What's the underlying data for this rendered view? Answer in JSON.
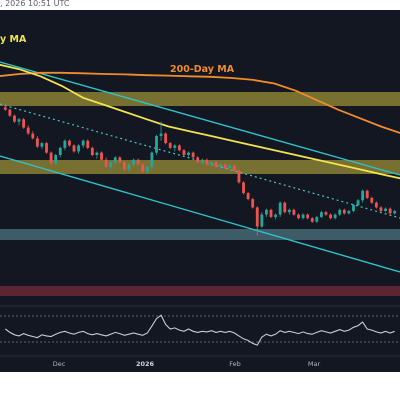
{
  "header": {
    "timestamp": ", 2026 10:51 UTC"
  },
  "colors": {
    "background": "#131722",
    "candle_up": "#26a69a",
    "candle_down": "#ef5350",
    "ma_50": "#f2e44e",
    "ma_200": "#f08c2c",
    "supply_zone": "#b5a83a",
    "demand_zone": "#5b8a96",
    "lower_zone": "#7a2d37",
    "channel": "#2fc1c8",
    "trend_dotted": "#49c2c4",
    "oscillator": "#c9cbd2"
  },
  "chart_data": [
    {
      "type": "candlestick",
      "annotations": [
        {
          "id": "ma50",
          "text": "y MA"
        },
        {
          "id": "ma200",
          "text": "200-Day MA"
        }
      ],
      "x_tick_labels": [
        "Dec",
        "2026",
        "Feb",
        "Mar"
      ],
      "series": [
        {
          "name": "price",
          "ohlc": [
            [
              100,
              101.5,
              98.5,
              99
            ],
            [
              99,
              99.5,
              96,
              96.5
            ],
            [
              96.5,
              97,
              93.5,
              94
            ],
            [
              94,
              95.5,
              92.5,
              95
            ],
            [
              95,
              95.5,
              91,
              91.5
            ],
            [
              91.5,
              92.5,
              88.5,
              89
            ],
            [
              89,
              90,
              86.5,
              87
            ],
            [
              87,
              88,
              83,
              83.5
            ],
            [
              83.5,
              85.5,
              82.5,
              85
            ],
            [
              85,
              85.5,
              80.5,
              81
            ],
            [
              81,
              81.5,
              76,
              76.5
            ],
            [
              76.5,
              80.5,
              76,
              80
            ],
            [
              80,
              83.5,
              79,
              83
            ],
            [
              83,
              86.5,
              82,
              86
            ],
            [
              86,
              86.5,
              83.5,
              84
            ],
            [
              84,
              84.5,
              81,
              81.5
            ],
            [
              81.5,
              84.5,
              80.5,
              84
            ],
            [
              84,
              86.5,
              83,
              86
            ],
            [
              86,
              86.5,
              82.5,
              83
            ],
            [
              83,
              83.5,
              79.5,
              80
            ],
            [
              80,
              81.5,
              78.5,
              81
            ],
            [
              81,
              81.5,
              77.5,
              78
            ],
            [
              78,
              79,
              74.5,
              75
            ],
            [
              75,
              77.5,
              74,
              77
            ],
            [
              77,
              79.5,
              76,
              79
            ],
            [
              79,
              79.5,
              76.5,
              77
            ],
            [
              77,
              77.5,
              73.5,
              74
            ],
            [
              74,
              76.5,
              73,
              76
            ],
            [
              76,
              78.5,
              75,
              78
            ],
            [
              78,
              78.5,
              75.5,
              76
            ],
            [
              76,
              76.5,
              72.5,
              73
            ],
            [
              73,
              75.5,
              72,
              75
            ],
            [
              75,
              81.5,
              74,
              81
            ],
            [
              81,
              88.5,
              80,
              88
            ],
            [
              88,
              94,
              86,
              89
            ],
            [
              89,
              89.5,
              84.5,
              85
            ],
            [
              85,
              85.5,
              82.5,
              83
            ],
            [
              83,
              84.5,
              81.5,
              84
            ],
            [
              84,
              84.5,
              81.5,
              82
            ],
            [
              82,
              82.5,
              79.5,
              80
            ],
            [
              80,
              81.5,
              78.5,
              81
            ],
            [
              81,
              81.5,
              78.5,
              79
            ],
            [
              79,
              79.5,
              76.5,
              77
            ],
            [
              77,
              78.5,
              76,
              78
            ],
            [
              78,
              78.5,
              75.5,
              76
            ],
            [
              76,
              77.5,
              75,
              77
            ],
            [
              77,
              77.5,
              74.5,
              75
            ],
            [
              75,
              76.5,
              74,
              76
            ],
            [
              76,
              76.5,
              74,
              74.5
            ],
            [
              74.5,
              76,
              73.5,
              75.5
            ],
            [
              75.5,
              76,
              73,
              73.5
            ],
            [
              73.5,
              74,
              68,
              68.5
            ],
            [
              68.5,
              69,
              63.5,
              64
            ],
            [
              64,
              64.5,
              61,
              61.5
            ],
            [
              61.5,
              62,
              57.5,
              58
            ],
            [
              58,
              58.5,
              46,
              50
            ],
            [
              50,
              56,
              49.5,
              55
            ],
            [
              55,
              57.5,
              54,
              57
            ],
            [
              57,
              57.5,
              53.5,
              54
            ],
            [
              54,
              55.5,
              53,
              55
            ],
            [
              55,
              60.5,
              54,
              60
            ],
            [
              60,
              60.5,
              55.5,
              56
            ],
            [
              56,
              57.5,
              55,
              57
            ],
            [
              57,
              57.5,
              54.5,
              55
            ],
            [
              55,
              55.5,
              53,
              53.5
            ],
            [
              53.5,
              55.5,
              53,
              55
            ],
            [
              55,
              55.5,
              53,
              53.5
            ],
            [
              53.5,
              54,
              51.5,
              52
            ],
            [
              52,
              54.5,
              51.5,
              54
            ],
            [
              54,
              56.5,
              53.5,
              56
            ],
            [
              56,
              56.5,
              54.5,
              55
            ],
            [
              55,
              55.5,
              53,
              53.5
            ],
            [
              53.5,
              55.5,
              53,
              55
            ],
            [
              55,
              57.5,
              54.5,
              57
            ],
            [
              57,
              57.5,
              55,
              55.5
            ],
            [
              55.5,
              57,
              55,
              56.5
            ],
            [
              56.5,
              59.5,
              56,
              59
            ],
            [
              59,
              61.5,
              58.5,
              61
            ],
            [
              61,
              65.5,
              60,
              65
            ],
            [
              65,
              65.5,
              61.5,
              62
            ],
            [
              62,
              62.5,
              59.5,
              60
            ],
            [
              60,
              60.5,
              57.5,
              58
            ],
            [
              58,
              58.5,
              56,
              56.5
            ],
            [
              56.5,
              58,
              56,
              57.5
            ],
            [
              57.5,
              58,
              55,
              55.5
            ],
            [
              55.5,
              57,
              55,
              56.5
            ]
          ]
        },
        {
          "name": "ma50",
          "values": [
            118,
            116,
            113,
            109,
            104,
            101,
            98,
            95,
            92,
            90,
            88,
            86,
            84,
            82,
            80,
            78,
            76,
            74,
            72,
            70
          ]
        },
        {
          "name": "ma200",
          "values": [
            113,
            114,
            114.5,
            114.5,
            114.3,
            114,
            113.8,
            113.5,
            113.3,
            113,
            112.8,
            112.3,
            111.5,
            110,
            107,
            103,
            99,
            95.5,
            92,
            89
          ]
        }
      ]
    },
    {
      "type": "line",
      "series": [
        {
          "name": "oscillator",
          "values": [
            50,
            44,
            40,
            38,
            42,
            39,
            37,
            35,
            40,
            38,
            37,
            41,
            44,
            46,
            43,
            41,
            44,
            46,
            42,
            40,
            42,
            40,
            38,
            41,
            44,
            42,
            39,
            41,
            43,
            41,
            39,
            43,
            55,
            68,
            74,
            58,
            50,
            52,
            48,
            46,
            50,
            46,
            44,
            46,
            45,
            47,
            44,
            46,
            44,
            46,
            43,
            38,
            33,
            30,
            25,
            22,
            36,
            41,
            38,
            41,
            47,
            44,
            46,
            44,
            42,
            45,
            42,
            41,
            44,
            47,
            45,
            43,
            46,
            49,
            46,
            48,
            53,
            56,
            62,
            50,
            48,
            45,
            43,
            46,
            43,
            46
          ]
        }
      ]
    }
  ]
}
